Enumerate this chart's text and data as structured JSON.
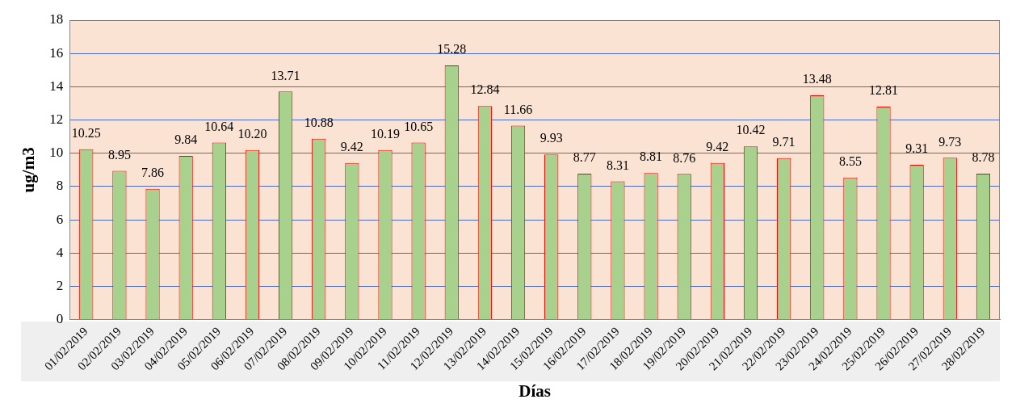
{
  "chart_data": {
    "type": "bar",
    "xlabel": "Días",
    "ylabel": "ug/m3",
    "categories": [
      "01/02/2019",
      "02/02/2019",
      "03/02/2019",
      "04/02/2019",
      "05/02/2019",
      "06/02/2019",
      "07/02/2019",
      "08/02/2019",
      "09/02/2019",
      "10/02/2019",
      "11/02/2019",
      "12/02/2019",
      "13/02/2019",
      "14/02/2019",
      "15/02/2019",
      "16/02/2019",
      "17/02/2019",
      "18/02/2019",
      "19/02/2019",
      "20/02/2019",
      "21/02/2019",
      "22/02/2019",
      "23/02/2019",
      "24/02/2019",
      "25/02/2019",
      "26/02/2019",
      "27/02/2019",
      "28/02/2019"
    ],
    "values": [
      10.25,
      8.95,
      7.86,
      9.84,
      10.64,
      10.2,
      13.71,
      10.88,
      9.42,
      10.19,
      10.65,
      15.28,
      12.84,
      11.66,
      9.93,
      8.77,
      8.31,
      8.81,
      8.76,
      9.42,
      10.42,
      9.71,
      13.48,
      8.55,
      12.81,
      9.31,
      9.73,
      8.78
    ],
    "value_labels": [
      "10.25",
      "8.95",
      "7.86",
      "9.84",
      "10.64",
      "10.20",
      "13.71",
      "10.88",
      "9.42",
      "10.19",
      "10.65",
      "15.28",
      "12.84",
      "11.66",
      "9.93",
      "8.77",
      "8.31",
      "8.81",
      "8.76",
      "9.42",
      "10.42",
      "9.71",
      "13.48",
      "8.55",
      "12.81",
      "9.31",
      "9.73",
      "8.78"
    ],
    "color": "#a9d18e",
    "ylim": [
      0,
      18
    ],
    "yticks": [
      0,
      2,
      4,
      6,
      8,
      10,
      12,
      14,
      16,
      18
    ],
    "grid": "y",
    "legend": false
  }
}
